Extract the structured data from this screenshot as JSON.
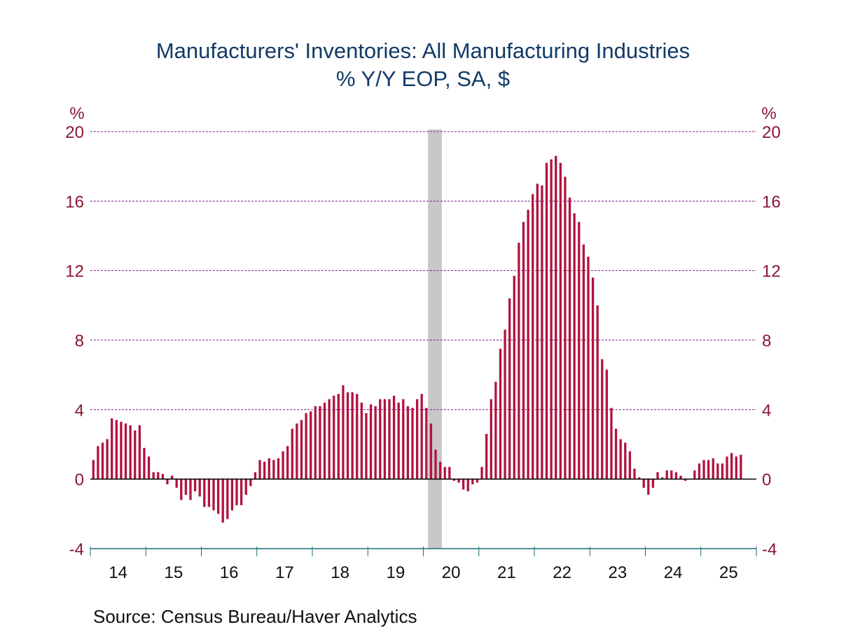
{
  "chart_data": {
    "type": "bar",
    "title": "Manufacturers' Inventories: All Manufacturing Industries",
    "subtitle": "% Y/Y   EOP, SA, $",
    "source": "Source:  Census Bureau/Haver Analytics",
    "ylabel_left": "%",
    "ylabel_right": "%",
    "ylim": [
      -4,
      20
    ],
    "yticks": [
      -4,
      0,
      4,
      8,
      12,
      16,
      20
    ],
    "grid": true,
    "x_start": "2014-01",
    "frequency": "monthly",
    "xtick_labels": [
      "14",
      "15",
      "16",
      "17",
      "18",
      "19",
      "20",
      "21",
      "22",
      "23",
      "24",
      "25"
    ],
    "recession_shading": {
      "start": "2020-02",
      "end": "2020-04"
    },
    "colors": {
      "bar": "#b0133f",
      "grid": "#7a1f8f",
      "axis_text": "#8a1538",
      "title": "#123a66",
      "axis_line": "#1e6f7a",
      "recession": "#c8c8c8"
    },
    "series": [
      {
        "name": "Manufacturers' Inventories % Y/Y",
        "values": [
          1.1,
          1.9,
          2.1,
          2.3,
          3.5,
          3.4,
          3.3,
          3.2,
          3.1,
          2.8,
          3.1,
          1.8,
          1.3,
          0.4,
          0.4,
          0.3,
          -0.3,
          0.2,
          -0.5,
          -1.2,
          -0.9,
          -1.2,
          -0.7,
          -1.0,
          -1.6,
          -1.6,
          -1.8,
          -2.0,
          -2.5,
          -2.3,
          -1.8,
          -1.5,
          -1.5,
          -0.9,
          -0.4,
          0.4,
          1.1,
          1.0,
          1.2,
          1.1,
          1.2,
          1.6,
          1.9,
          2.9,
          3.2,
          3.4,
          3.8,
          3.9,
          4.2,
          4.2,
          4.4,
          4.6,
          4.8,
          4.9,
          5.4,
          5.0,
          5.0,
          4.9,
          4.4,
          3.8,
          4.3,
          4.2,
          4.6,
          4.6,
          4.6,
          4.8,
          4.4,
          4.6,
          4.2,
          4.1,
          4.6,
          4.9,
          4.1,
          3.2,
          1.7,
          1.0,
          0.7,
          0.7,
          -0.1,
          -0.2,
          -0.6,
          -0.7,
          -0.3,
          -0.2,
          0.7,
          2.6,
          4.6,
          5.6,
          7.5,
          8.6,
          10.4,
          11.7,
          13.6,
          14.8,
          15.5,
          16.4,
          17.0,
          16.9,
          18.2,
          18.4,
          18.6,
          18.2,
          17.4,
          16.2,
          15.3,
          14.8,
          13.5,
          12.8,
          11.6,
          10.0,
          6.9,
          6.3,
          4.1,
          2.9,
          2.3,
          2.1,
          1.6,
          0.6,
          0.1,
          -0.5,
          -0.9,
          -0.5,
          0.4,
          0.1,
          0.5,
          0.5,
          0.4,
          0.2,
          -0.1,
          0.0,
          0.5,
          0.9,
          1.1,
          1.1,
          1.2,
          0.9,
          0.9,
          1.3,
          1.5,
          1.3,
          1.4
        ]
      }
    ]
  }
}
